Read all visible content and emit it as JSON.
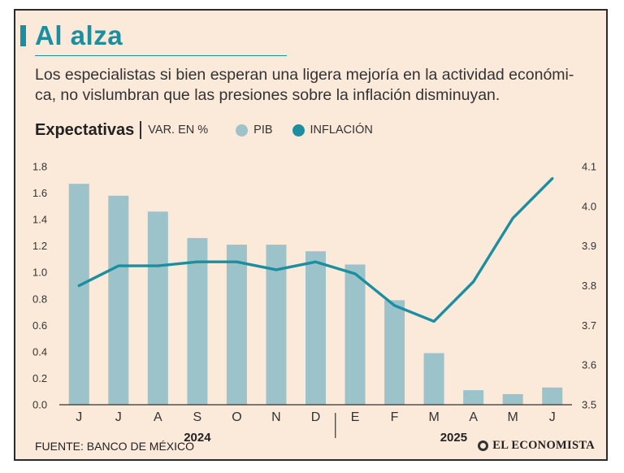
{
  "header": {
    "title": "Al alza",
    "subtitle_lines": [
      "Los especialistas si bien esperan una ligera mejoría en la actividad económi-",
      "ca, no vislumbran que las presiones sobre la inflación disminuyan."
    ]
  },
  "legend": {
    "title": "Expectativas",
    "unit": "VAR. EN %",
    "items": [
      {
        "label": "PIB",
        "color": "#9dc3ca"
      },
      {
        "label": "INFLACIÓN",
        "color": "#1b8ea0"
      }
    ]
  },
  "footer": {
    "source": "FUENTE: BANCO DE MÉXICO",
    "brand": "EL ECONOMISTA"
  },
  "chart_data": {
    "type": "bar",
    "categories": [
      "J",
      "J",
      "A",
      "S",
      "O",
      "N",
      "D",
      "E",
      "F",
      "M",
      "A",
      "M",
      "J"
    ],
    "groups": [
      {
        "label": "2024",
        "from": 0,
        "to": 6
      },
      {
        "label": "2025",
        "from": 7,
        "to": 12
      }
    ],
    "series": [
      {
        "name": "PIB",
        "type": "bar",
        "axis": "left",
        "color": "#9dc3ca",
        "values": [
          1.67,
          1.58,
          1.46,
          1.26,
          1.21,
          1.21,
          1.16,
          1.06,
          0.79,
          0.39,
          0.11,
          0.08,
          0.13
        ]
      },
      {
        "name": "INFLACIÓN",
        "type": "line",
        "axis": "right",
        "color": "#1b8ea0",
        "values": [
          3.8,
          3.85,
          3.85,
          3.86,
          3.86,
          3.84,
          3.86,
          3.83,
          3.75,
          3.71,
          3.81,
          3.97,
          4.07
        ]
      }
    ],
    "y_left": {
      "ylim": [
        0.0,
        1.8
      ],
      "ticks": [
        "0.0",
        "0.2",
        "0.4",
        "0.6",
        "0.8",
        "1.0",
        "1.2",
        "1.4",
        "1.6",
        "1.8"
      ]
    },
    "y_right": {
      "ylim": [
        3.5,
        4.1
      ],
      "ticks": [
        "3.5",
        "3.6",
        "3.7",
        "3.8",
        "3.9",
        "4.0",
        "4.1"
      ]
    },
    "grid": false
  }
}
